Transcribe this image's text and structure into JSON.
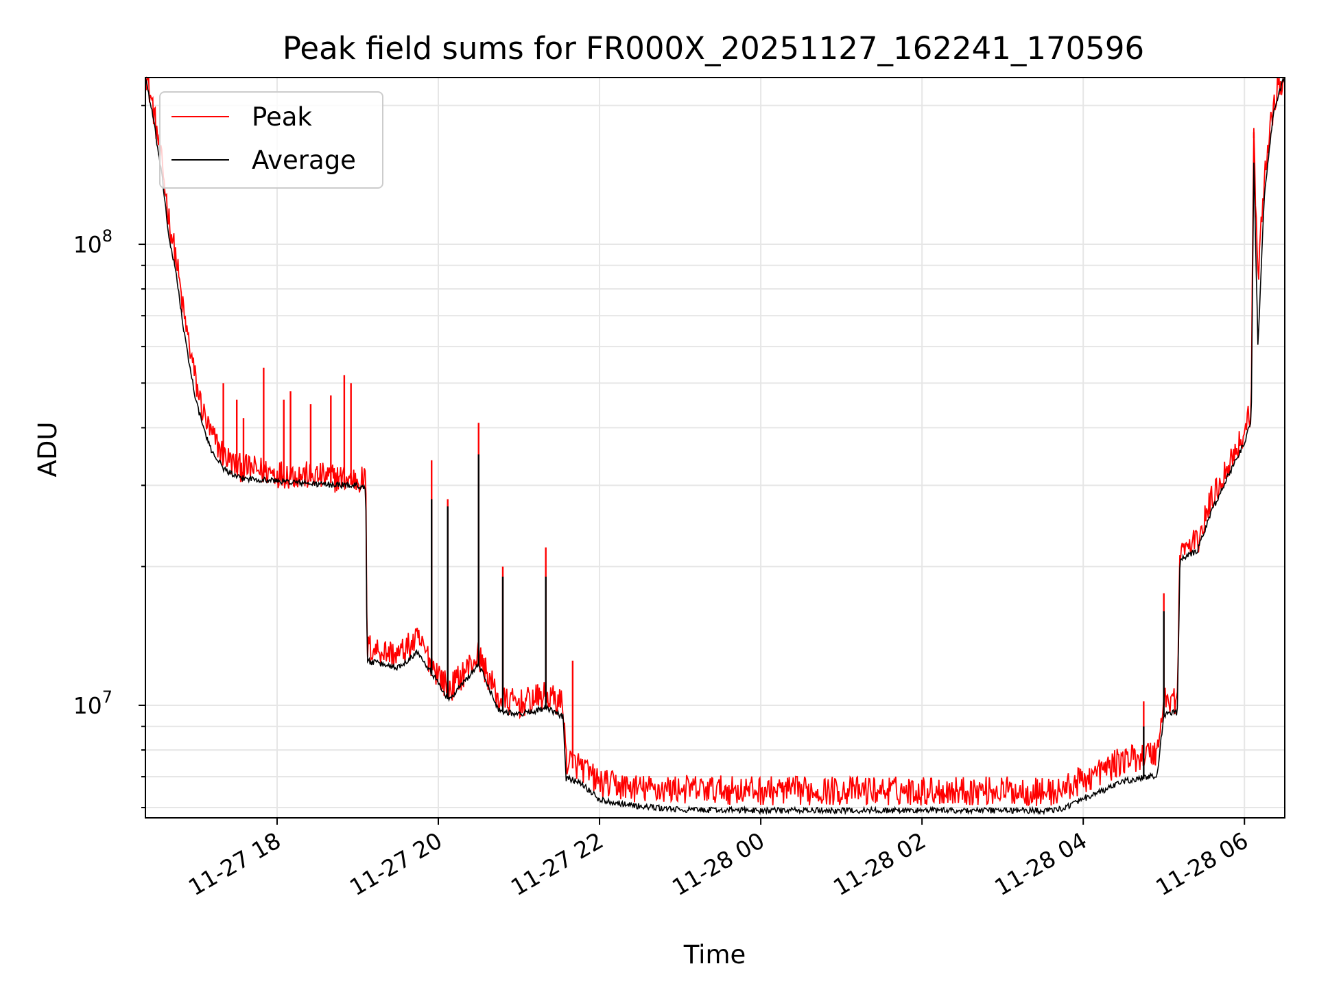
{
  "chart_data": {
    "type": "line",
    "title": "Peak field sums for FR000X_20251127_162241_170596",
    "xlabel": "Time",
    "ylabel": "ADU",
    "y_scale": "log",
    "ylim": [
      5700000,
      230000000
    ],
    "xlim": [
      "2025-11-27 16:22",
      "2025-11-28 06:30"
    ],
    "grid": true,
    "legend_position": "top-left",
    "x_tick_labels": [
      {
        "t": "2025-11-27 18:00",
        "label": "11-27 18"
      },
      {
        "t": "2025-11-27 20:00",
        "label": "11-27 20"
      },
      {
        "t": "2025-11-27 22:00",
        "label": "11-27 22"
      },
      {
        "t": "2025-11-28 00:00",
        "label": "11-28 00"
      },
      {
        "t": "2025-11-28 02:00",
        "label": "11-28 02"
      },
      {
        "t": "2025-11-28 04:00",
        "label": "11-28 04"
      },
      {
        "t": "2025-11-28 06:00",
        "label": "11-28 06"
      }
    ],
    "y_tick_labels": [
      {
        "value": 10000000,
        "base": "10",
        "exp": "7"
      },
      {
        "value": 100000000,
        "base": "10",
        "exp": "8"
      }
    ],
    "series": [
      {
        "name": "Peak",
        "color": "#ff0000",
        "points": [
          [
            "2025-11-27 16:22",
            230000000
          ],
          [
            "2025-11-27 16:28",
            190000000
          ],
          [
            "2025-11-27 16:35",
            140000000
          ],
          [
            "2025-11-27 16:40",
            108000000
          ],
          [
            "2025-11-27 16:45",
            90000000
          ],
          [
            "2025-11-27 16:50",
            70000000
          ],
          [
            "2025-11-27 16:55",
            58000000
          ],
          [
            "2025-11-27 17:00",
            48000000
          ],
          [
            "2025-11-27 17:05",
            42000000
          ],
          [
            "2025-11-27 17:10",
            38000000
          ],
          [
            "2025-11-27 17:20",
            34000000
          ],
          [
            "2025-11-27 17:30",
            32000000
          ],
          [
            "2025-11-27 18:00",
            31000000
          ],
          [
            "2025-11-27 18:30",
            30500000
          ],
          [
            "2025-11-27 19:00",
            30000000
          ],
          [
            "2025-11-27 19:06",
            30000000
          ],
          [
            "2025-11-27 19:07",
            13000000
          ],
          [
            "2025-11-27 19:30",
            12500000
          ],
          [
            "2025-11-27 19:45",
            13500000
          ],
          [
            "2025-11-27 19:55",
            12000000
          ],
          [
            "2025-11-27 20:08",
            10500000
          ],
          [
            "2025-11-27 20:30",
            12500000
          ],
          [
            "2025-11-27 20:45",
            10000000
          ],
          [
            "2025-11-27 21:00",
            9800000
          ],
          [
            "2025-11-27 21:20",
            10200000
          ],
          [
            "2025-11-27 21:33",
            9800000
          ],
          [
            "2025-11-27 21:35",
            7400000
          ],
          [
            "2025-11-27 21:45",
            7200000
          ],
          [
            "2025-11-27 22:00",
            6600000
          ],
          [
            "2025-11-27 22:30",
            6400000
          ],
          [
            "2025-11-27 23:00",
            6400000
          ],
          [
            "2025-11-28 00:00",
            6350000
          ],
          [
            "2025-11-28 01:00",
            6350000
          ],
          [
            "2025-11-28 02:00",
            6350000
          ],
          [
            "2025-11-28 03:00",
            6350000
          ],
          [
            "2025-11-28 03:40",
            6300000
          ],
          [
            "2025-11-28 04:00",
            6700000
          ],
          [
            "2025-11-28 04:30",
            7400000
          ],
          [
            "2025-11-28 04:55",
            7700000
          ],
          [
            "2025-11-28 05:00",
            10000000
          ],
          [
            "2025-11-28 05:10",
            10000000
          ],
          [
            "2025-11-28 05:12",
            21000000
          ],
          [
            "2025-11-28 05:25",
            22000000
          ],
          [
            "2025-11-28 05:35",
            27000000
          ],
          [
            "2025-11-28 05:45",
            31000000
          ],
          [
            "2025-11-28 06:00",
            38000000
          ],
          [
            "2025-11-28 06:05",
            43000000
          ],
          [
            "2025-11-28 06:07",
            170000000
          ],
          [
            "2025-11-28 06:10",
            80000000
          ],
          [
            "2025-11-28 06:15",
            140000000
          ],
          [
            "2025-11-28 06:22",
            200000000
          ],
          [
            "2025-11-28 06:30",
            230000000
          ]
        ],
        "spikes": [
          [
            "2025-11-27 17:20",
            50000000
          ],
          [
            "2025-11-27 17:30",
            46000000
          ],
          [
            "2025-11-27 17:35",
            42000000
          ],
          [
            "2025-11-27 17:50",
            54000000
          ],
          [
            "2025-11-27 18:05",
            46000000
          ],
          [
            "2025-11-27 18:10",
            48000000
          ],
          [
            "2025-11-27 18:25",
            45000000
          ],
          [
            "2025-11-27 18:40",
            47000000
          ],
          [
            "2025-11-27 18:50",
            52000000
          ],
          [
            "2025-11-27 18:55",
            50000000
          ],
          [
            "2025-11-27 19:55",
            34000000
          ],
          [
            "2025-11-27 20:07",
            28000000
          ],
          [
            "2025-11-27 20:30",
            41000000
          ],
          [
            "2025-11-27 20:48",
            20000000
          ],
          [
            "2025-11-27 21:20",
            22000000
          ],
          [
            "2025-11-27 21:40",
            12500000
          ],
          [
            "2025-11-28 04:45",
            10200000
          ],
          [
            "2025-11-28 05:00",
            17500000
          ],
          [
            "2025-11-28 06:07",
            175000000
          ]
        ]
      },
      {
        "name": "Average",
        "color": "#000000",
        "points": [
          [
            "2025-11-27 16:22",
            230000000
          ],
          [
            "2025-11-27 16:28",
            185000000
          ],
          [
            "2025-11-27 16:35",
            135000000
          ],
          [
            "2025-11-27 16:40",
            100000000
          ],
          [
            "2025-11-27 16:45",
            86000000
          ],
          [
            "2025-11-27 16:50",
            66000000
          ],
          [
            "2025-11-27 16:55",
            54000000
          ],
          [
            "2025-11-27 17:00",
            45000000
          ],
          [
            "2025-11-27 17:05",
            40000000
          ],
          [
            "2025-11-27 17:10",
            36000000
          ],
          [
            "2025-11-27 17:20",
            32500000
          ],
          [
            "2025-11-27 17:30",
            31000000
          ],
          [
            "2025-11-27 18:00",
            30500000
          ],
          [
            "2025-11-27 18:30",
            30000000
          ],
          [
            "2025-11-27 19:00",
            29800000
          ],
          [
            "2025-11-27 19:06",
            29500000
          ],
          [
            "2025-11-27 19:07",
            12400000
          ],
          [
            "2025-11-27 19:30",
            12000000
          ],
          [
            "2025-11-27 19:45",
            13000000
          ],
          [
            "2025-11-27 19:55",
            11700000
          ],
          [
            "2025-11-27 20:08",
            10200000
          ],
          [
            "2025-11-27 20:30",
            12200000
          ],
          [
            "2025-11-27 20:45",
            9700000
          ],
          [
            "2025-11-27 21:00",
            9500000
          ],
          [
            "2025-11-27 21:20",
            9800000
          ],
          [
            "2025-11-27 21:33",
            9400000
          ],
          [
            "2025-11-27 21:35",
            6900000
          ],
          [
            "2025-11-27 21:45",
            6800000
          ],
          [
            "2025-11-27 22:00",
            6200000
          ],
          [
            "2025-11-27 22:30",
            6000000
          ],
          [
            "2025-11-27 23:00",
            5900000
          ],
          [
            "2025-11-28 00:00",
            5880000
          ],
          [
            "2025-11-28 01:00",
            5880000
          ],
          [
            "2025-11-28 02:00",
            5880000
          ],
          [
            "2025-11-28 03:00",
            5880000
          ],
          [
            "2025-11-28 03:40",
            5880000
          ],
          [
            "2025-11-28 04:00",
            6200000
          ],
          [
            "2025-11-28 04:30",
            6800000
          ],
          [
            "2025-11-28 04:55",
            7000000
          ],
          [
            "2025-11-28 05:00",
            9500000
          ],
          [
            "2025-11-28 05:10",
            9600000
          ],
          [
            "2025-11-28 05:12",
            20500000
          ],
          [
            "2025-11-28 05:25",
            21500000
          ],
          [
            "2025-11-28 05:35",
            26000000
          ],
          [
            "2025-11-28 05:45",
            30000000
          ],
          [
            "2025-11-28 06:00",
            37000000
          ],
          [
            "2025-11-28 06:05",
            41000000
          ],
          [
            "2025-11-28 06:07",
            150000000
          ],
          [
            "2025-11-28 06:10",
            60000000
          ],
          [
            "2025-11-28 06:15",
            130000000
          ],
          [
            "2025-11-28 06:22",
            195000000
          ],
          [
            "2025-11-28 06:30",
            230000000
          ]
        ],
        "spikes": [
          [
            "2025-11-27 19:55",
            28000000
          ],
          [
            "2025-11-27 20:07",
            27000000
          ],
          [
            "2025-11-27 20:30",
            35000000
          ],
          [
            "2025-11-27 20:48",
            19000000
          ],
          [
            "2025-11-27 21:20",
            19000000
          ],
          [
            "2025-11-28 04:45",
            9000000
          ],
          [
            "2025-11-28 05:00",
            16000000
          ],
          [
            "2025-11-28 06:07",
            150000000
          ]
        ]
      }
    ]
  }
}
